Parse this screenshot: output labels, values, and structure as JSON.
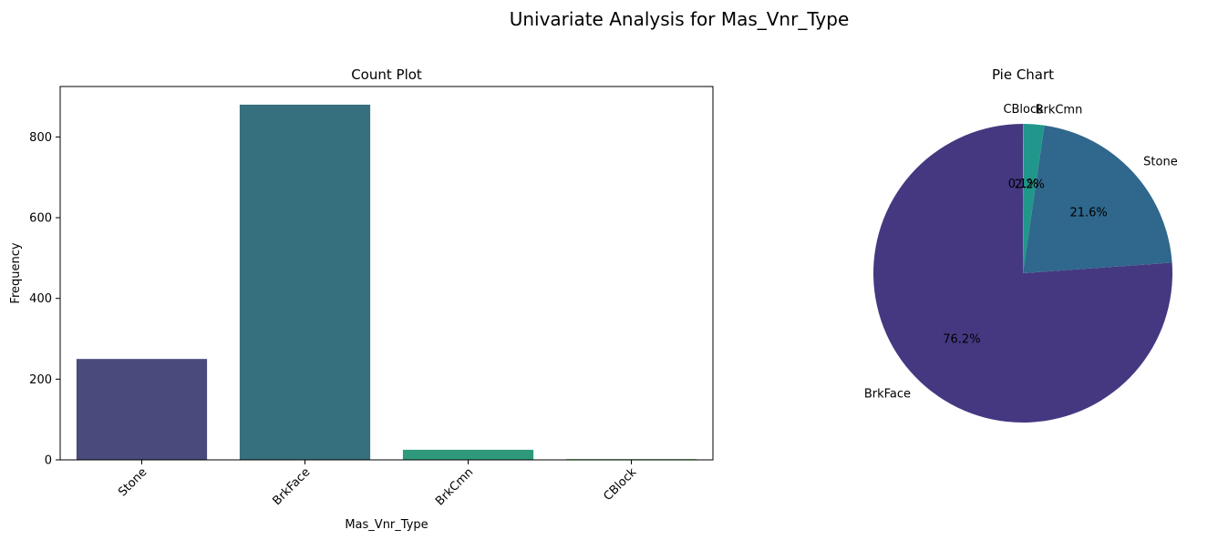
{
  "figure_title": "Univariate Analysis for Mas_Vnr_Type",
  "chart_data": [
    {
      "type": "bar",
      "title": "Count Plot",
      "xlabel": "Mas_Vnr_Type",
      "ylabel": "Frequency",
      "categories": [
        "Stone",
        "BrkFace",
        "BrkCmn",
        "CBlock"
      ],
      "values": [
        250,
        880,
        25,
        2
      ],
      "colors": [
        "#4a4a7d",
        "#366f7e",
        "#2e9a7b",
        "#5fbb55"
      ],
      "ylim": [
        0,
        925
      ],
      "yticks": [
        0,
        200,
        400,
        600,
        800
      ],
      "xtick_rotation": 45,
      "grid": false,
      "legend": false
    },
    {
      "type": "pie",
      "title": "Pie Chart",
      "labels": [
        "BrkFace",
        "Stone",
        "BrkCmn",
        "CBlock"
      ],
      "values": [
        76.2,
        21.6,
        2.2,
        0.1
      ],
      "autopct": [
        "76.2%",
        "21.6%",
        "2.2%",
        "0.1%"
      ],
      "colors": [
        "#453881",
        "#30678c",
        "#20978a",
        "#46b978"
      ],
      "startangle": 90,
      "direction": "counterclockwise"
    }
  ]
}
